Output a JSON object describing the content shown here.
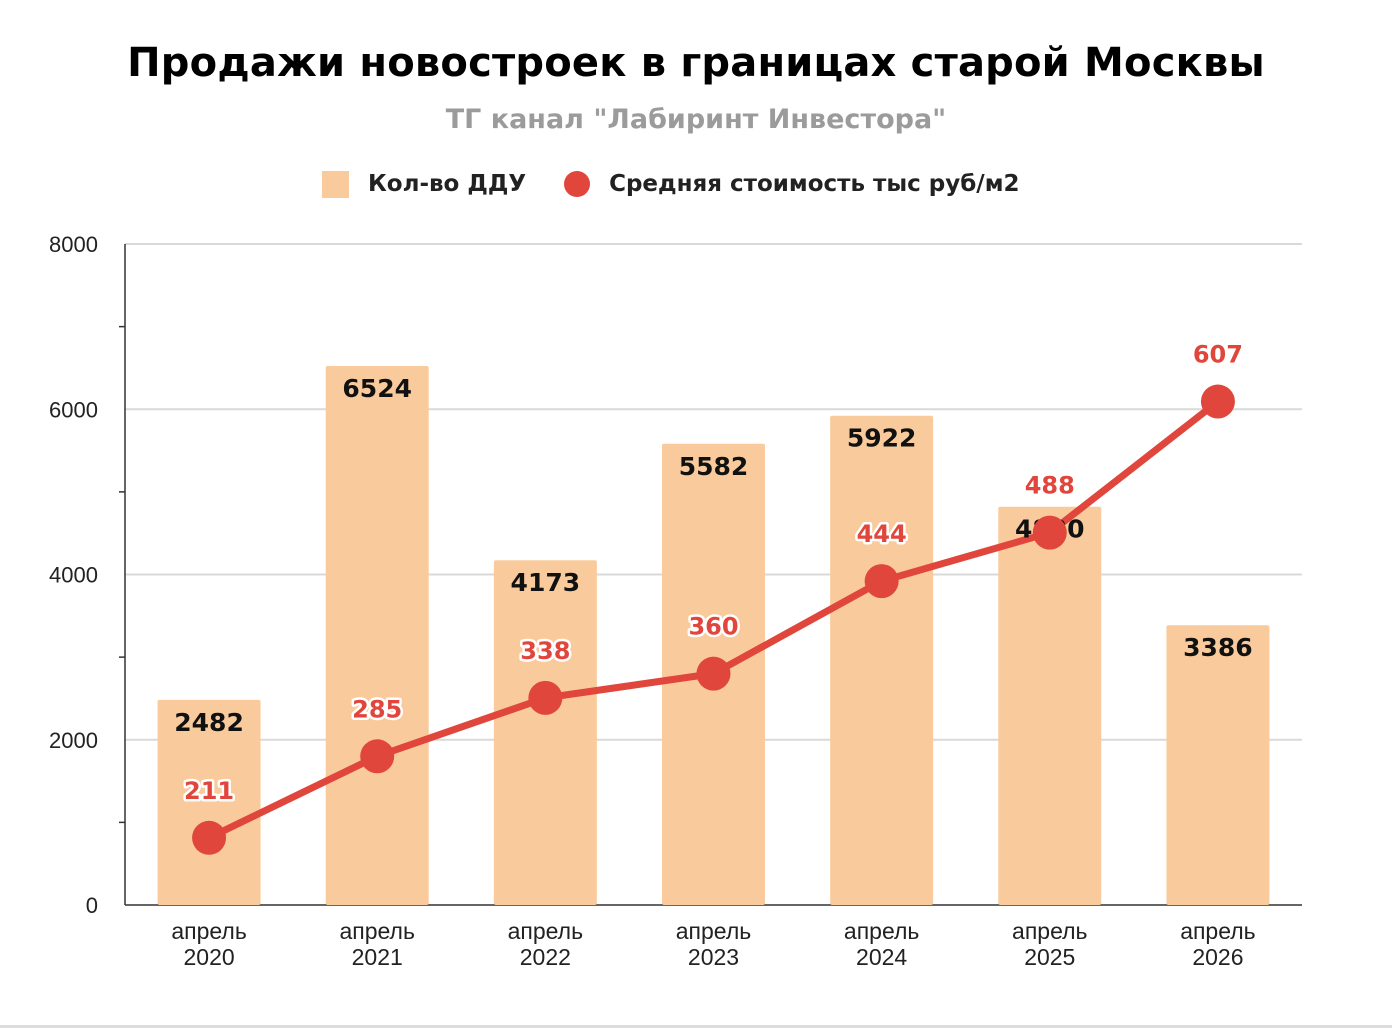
{
  "chart_data": {
    "type": "bar",
    "title": "Продажи новостроек в границах старой Москвы",
    "subtitle": "ТГ канал \"Лабиринт Инвестора\"",
    "categories": [
      [
        "апрель",
        "2020"
      ],
      [
        "апрель",
        "2021"
      ],
      [
        "апрель",
        "2022"
      ],
      [
        "апрель",
        "2023"
      ],
      [
        "апрель",
        "2024"
      ],
      [
        "апрель",
        "2025"
      ],
      [
        "апрель",
        "2026"
      ]
    ],
    "series": [
      {
        "name": "Кол-во ДДУ",
        "type": "bar",
        "values": [
          2482,
          6524,
          4173,
          5582,
          5922,
          4820,
          3386
        ],
        "color": "#f9cb9c"
      },
      {
        "name": "Средняя стоимость тыс руб/м2",
        "type": "line",
        "values": [
          211,
          285,
          338,
          360,
          444,
          488,
          607
        ],
        "color": "#e0463b"
      }
    ],
    "ylim": [
      0,
      8000
    ],
    "yticks": [
      0,
      2000,
      4000,
      6000,
      8000
    ],
    "secondary_ylim": [
      150,
      750
    ],
    "legend_position": "top",
    "grid": true
  }
}
